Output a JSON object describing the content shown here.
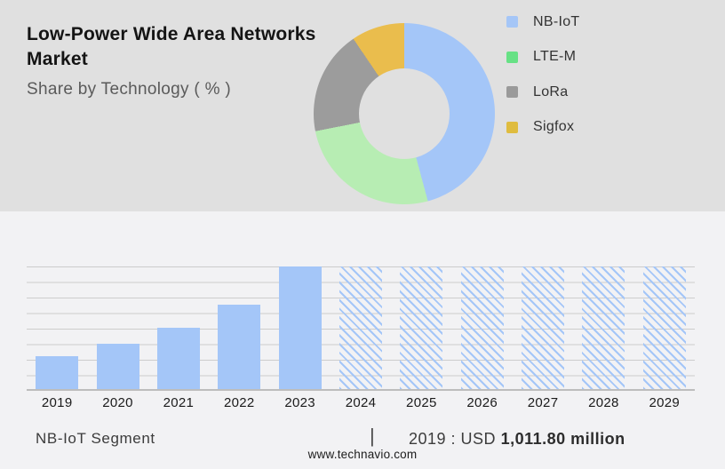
{
  "header": {
    "title": "Low-Power Wide Area Networks Market",
    "subtitle": "Share by Technology ( % )"
  },
  "legend": {
    "items": [
      {
        "label": "NB-IoT",
        "color": "#a5c6f7"
      },
      {
        "label": "LTE-M",
        "color": "#67e185"
      },
      {
        "label": "LoRa",
        "color": "#9a9a9a"
      },
      {
        "label": "Sigfox",
        "color": "#dfbc3f"
      }
    ]
  },
  "footer": {
    "segment_label": "NB-IoT Segment",
    "divider": "|",
    "value_prefix": "2019 : USD ",
    "value_bold": "1,011.80 million",
    "website": "www.technavio.com"
  },
  "colors": {
    "top_section_bg": "#e0e0e0",
    "bottom_section_bg": "#f2f2f4",
    "bar_fill": "#a4c6f8",
    "grid_line": "#cccccc",
    "axis_line": "#bdbdbd"
  },
  "chart_data": [
    {
      "type": "pie",
      "subtype": "donut",
      "title": "Share by Technology ( % )",
      "inner_radius_ratio": 0.5,
      "start_angle_deg": 0,
      "direction": "clockwise",
      "legend_position": "right",
      "segments": [
        {
          "label": "NB-IoT",
          "value": 45.8,
          "color": "#a4c6f8"
        },
        {
          "label": "LTE-M",
          "value": 26.1,
          "color": "#b7edb3"
        },
        {
          "label": "LoRa",
          "value": 18.6,
          "color": "#9c9c9c"
        },
        {
          "label": "Sigfox",
          "value": 9.5,
          "color": "#eabd4d"
        }
      ],
      "note": "values estimated from arc angles; percentages not printed on chart"
    },
    {
      "type": "bar",
      "title": "NB-IoT Segment",
      "categories": [
        "2019",
        "2020",
        "2021",
        "2022",
        "2023",
        "2024",
        "2025",
        "2026",
        "2027",
        "2028",
        "2029"
      ],
      "values": [
        27,
        37,
        50,
        69,
        100,
        100,
        100,
        100,
        100,
        100,
        100
      ],
      "forecast": [
        false,
        false,
        false,
        false,
        false,
        true,
        true,
        true,
        true,
        true,
        true
      ],
      "value_unit": "relative height, 2023 = 100 (no y-axis labels shown)",
      "known_point": {
        "category": "2019",
        "label": "2019 : USD 1,011.80 million"
      },
      "xlabel": "",
      "ylabel": "",
      "ylim": [
        0,
        100
      ],
      "grid": true,
      "gridline_count": 9,
      "legend_position": "none"
    }
  ]
}
